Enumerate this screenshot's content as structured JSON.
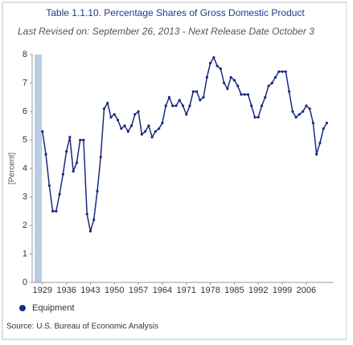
{
  "chart_data": {
    "type": "line",
    "title": "Table 1.1.10. Percentage Shares of Gross Domestic Product",
    "subtitle": "Last Revised on: September 26, 2013 - Next Release Date October 3",
    "y_label": "[Percent]",
    "source": "Source: U.S. Bureau of Economic Analysis",
    "x": [
      1929,
      1930,
      1931,
      1932,
      1933,
      1934,
      1935,
      1936,
      1937,
      1938,
      1939,
      1940,
      1941,
      1942,
      1943,
      1944,
      1945,
      1946,
      1947,
      1948,
      1949,
      1950,
      1951,
      1952,
      1953,
      1954,
      1955,
      1956,
      1957,
      1958,
      1959,
      1960,
      1961,
      1962,
      1963,
      1964,
      1965,
      1966,
      1967,
      1968,
      1969,
      1970,
      1971,
      1972,
      1973,
      1974,
      1975,
      1976,
      1977,
      1978,
      1979,
      1980,
      1981,
      1982,
      1983,
      1984,
      1985,
      1986,
      1987,
      1988,
      1989,
      1990,
      1991,
      1992,
      1993,
      1994,
      1995,
      1996,
      1997,
      1998,
      1999,
      2000,
      2001,
      2002,
      2003,
      2004,
      2005,
      2006,
      2007,
      2008,
      2009,
      2010,
      2011,
      2012
    ],
    "series": [
      {
        "name": "Equipment",
        "color": "#1a2a80",
        "values": [
          5.3,
          4.5,
          3.4,
          2.5,
          2.5,
          3.1,
          3.8,
          4.6,
          5.1,
          3.9,
          4.2,
          5.0,
          5.0,
          2.4,
          1.8,
          2.2,
          3.2,
          4.4,
          6.1,
          6.3,
          5.8,
          5.9,
          5.7,
          5.4,
          5.5,
          5.3,
          5.5,
          5.9,
          6.0,
          5.2,
          5.3,
          5.5,
          5.1,
          5.3,
          5.4,
          5.6,
          6.2,
          6.5,
          6.2,
          6.2,
          6.4,
          6.2,
          5.9,
          6.2,
          6.7,
          6.7,
          6.4,
          6.5,
          7.2,
          7.7,
          7.9,
          7.6,
          7.5,
          7.0,
          6.8,
          7.2,
          7.1,
          6.9,
          6.6,
          6.6,
          6.6,
          6.2,
          5.8,
          5.8,
          6.2,
          6.5,
          6.9,
          7.0,
          7.2,
          7.4,
          7.4,
          7.4,
          6.7,
          6.0,
          5.8,
          5.9,
          6.0,
          6.2,
          6.1,
          5.6,
          4.5,
          4.9,
          5.4,
          5.6
        ]
      }
    ],
    "xlim": [
      1926,
      2014
    ],
    "xticks": [
      1929,
      1936,
      1943,
      1950,
      1957,
      1964,
      1971,
      1978,
      1985,
      1992,
      1999,
      2006
    ],
    "ylim": [
      0,
      8
    ],
    "yticks": [
      0,
      1,
      2,
      3,
      4,
      5,
      6,
      7,
      8
    ],
    "legend": "bottom-left"
  }
}
